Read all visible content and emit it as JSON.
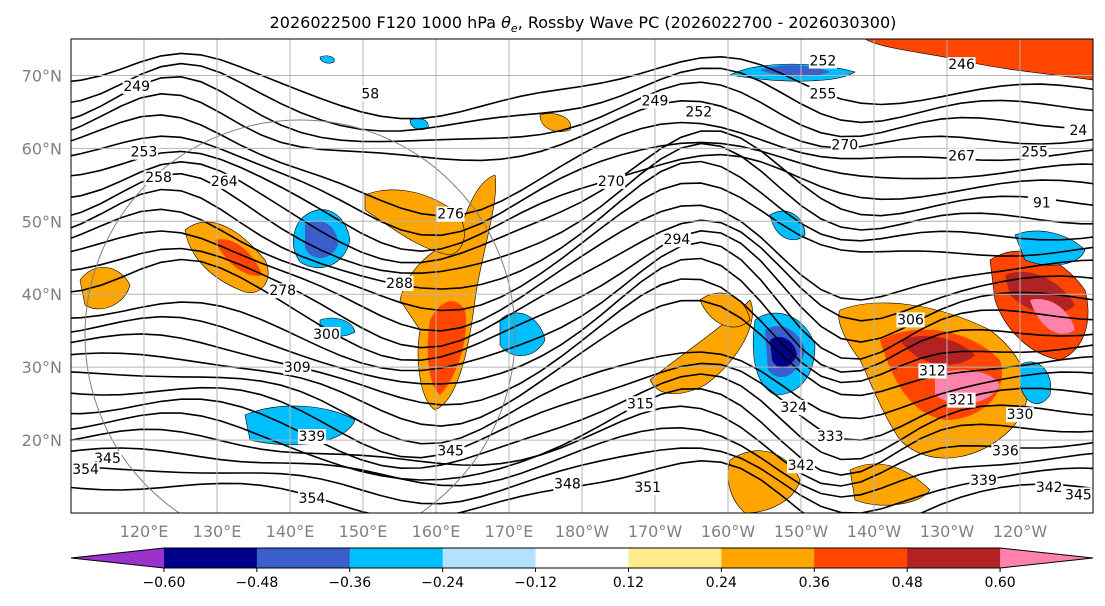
{
  "title": {
    "prefix": "2026022500 F120 1000 hPa ",
    "theta": "θ",
    "sub": "e",
    "suffix": ", Rossby Wave PC (2026022700 - 2026030300)"
  },
  "map": {
    "lat_labels": [
      "70°N",
      "60°N",
      "50°N",
      "40°N",
      "30°N",
      "20°N"
    ],
    "lat_values": [
      70,
      60,
      50,
      40,
      30,
      20
    ],
    "lon_labels": [
      "120°E",
      "130°E",
      "140°E",
      "150°E",
      "160°E",
      "170°E",
      "180°W",
      "170°W",
      "160°W",
      "150°W",
      "140°W",
      "130°W",
      "120°W"
    ],
    "lon_values": [
      120,
      130,
      140,
      150,
      160,
      170,
      180,
      190,
      200,
      210,
      220,
      230,
      240
    ],
    "lat_range": [
      10,
      75
    ],
    "lon_range": [
      110,
      250
    ],
    "contour_labels": [
      {
        "text": "249",
        "lon": 119,
        "lat": 68
      },
      {
        "text": "58",
        "lon": 151,
        "lat": 67
      },
      {
        "text": "249",
        "lon": 190,
        "lat": 66
      },
      {
        "text": "252",
        "lon": 196,
        "lat": 64.5
      },
      {
        "text": "252",
        "lon": 213,
        "lat": 71.5
      },
      {
        "text": "255",
        "lon": 213,
        "lat": 67
      },
      {
        "text": "246",
        "lon": 232,
        "lat": 71
      },
      {
        "text": "24",
        "lon": 248,
        "lat": 62
      },
      {
        "text": "253",
        "lon": 120,
        "lat": 59
      },
      {
        "text": "258",
        "lon": 122,
        "lat": 55.5
      },
      {
        "text": "264",
        "lon": 131,
        "lat": 55
      },
      {
        "text": "270",
        "lon": 184,
        "lat": 55
      },
      {
        "text": "270",
        "lon": 216,
        "lat": 60
      },
      {
        "text": "267",
        "lon": 232,
        "lat": 58.5
      },
      {
        "text": "255",
        "lon": 242,
        "lat": 59
      },
      {
        "text": "276",
        "lon": 162,
        "lat": 50.5
      },
      {
        "text": "294",
        "lon": 193,
        "lat": 47
      },
      {
        "text": "91",
        "lon": 243,
        "lat": 52
      },
      {
        "text": "278",
        "lon": 139,
        "lat": 40
      },
      {
        "text": "288",
        "lon": 155,
        "lat": 41
      },
      {
        "text": "300",
        "lon": 145,
        "lat": 34
      },
      {
        "text": "306",
        "lon": 225,
        "lat": 36
      },
      {
        "text": "309",
        "lon": 141,
        "lat": 29.5
      },
      {
        "text": "312",
        "lon": 228,
        "lat": 29
      },
      {
        "text": "315",
        "lon": 188,
        "lat": 24.5
      },
      {
        "text": "321",
        "lon": 232,
        "lat": 25
      },
      {
        "text": "324",
        "lon": 209,
        "lat": 24
      },
      {
        "text": "330",
        "lon": 240,
        "lat": 23
      },
      {
        "text": "333",
        "lon": 214,
        "lat": 20
      },
      {
        "text": "339",
        "lon": 143,
        "lat": 20
      },
      {
        "text": "336",
        "lon": 238,
        "lat": 18
      },
      {
        "text": "345",
        "lon": 162,
        "lat": 18
      },
      {
        "text": "342",
        "lon": 210,
        "lat": 16
      },
      {
        "text": "348",
        "lon": 178,
        "lat": 13.5
      },
      {
        "text": "351",
        "lon": 189,
        "lat": 13
      },
      {
        "text": "339",
        "lon": 235,
        "lat": 14
      },
      {
        "text": "342",
        "lon": 244,
        "lat": 13
      },
      {
        "text": "345",
        "lon": 248,
        "lat": 12
      },
      {
        "text": "354",
        "lon": 143,
        "lat": 11.5
      },
      {
        "text": "345",
        "lon": 115,
        "lat": 17
      },
      {
        "text": "354",
        "lon": 112,
        "lat": 15.5
      }
    ]
  },
  "colorbar": {
    "levels": [
      -0.72,
      -0.6,
      -0.48,
      -0.36,
      -0.24,
      -0.12,
      0.12,
      0.24,
      0.36,
      0.48,
      0.6,
      0.72
    ],
    "tick_labels": [
      "−0.60",
      "−0.48",
      "−0.36",
      "−0.24",
      "−0.12",
      "0.12",
      "0.24",
      "0.36",
      "0.48",
      "0.60"
    ],
    "colors": [
      "#9b32cc",
      "#00008b",
      "#3a5fcd",
      "#00bfff",
      "#b2e2ff",
      "#ffffff",
      "#ffec8b",
      "#ffa500",
      "#ff4500",
      "#b22222",
      "#ff82ab"
    ]
  },
  "style": {
    "grid_color": "#b4b4b4",
    "contour_color": "#000000",
    "label_color": "#808080"
  }
}
